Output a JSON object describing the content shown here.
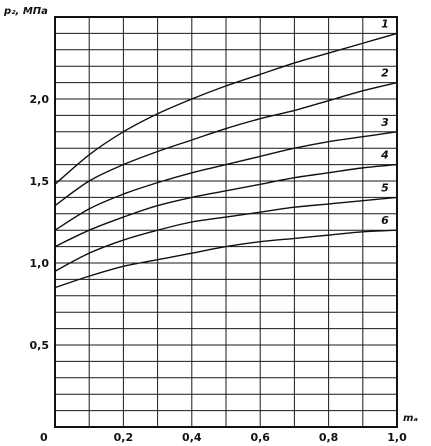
{
  "chart_data": {
    "type": "line",
    "title": "",
    "ylabel": "p₂, МПа",
    "xlabel": "mₐ",
    "xlim": [
      0,
      1.0
    ],
    "ylim": [
      0,
      2.5
    ],
    "grid": true,
    "x_ticks": [
      {
        "value": 0,
        "label": "0"
      },
      {
        "value": 0.2,
        "label": "0,2"
      },
      {
        "value": 0.4,
        "label": "0,4"
      },
      {
        "value": 0.6,
        "label": "0,6"
      },
      {
        "value": 0.8,
        "label": "0,8"
      },
      {
        "value": 1.0,
        "label": "1,0"
      }
    ],
    "y_ticks": [
      {
        "value": 0.5,
        "label": "0,5"
      },
      {
        "value": 1.0,
        "label": "1,0"
      },
      {
        "value": 1.5,
        "label": "1,5"
      },
      {
        "value": 2.0,
        "label": "2,0"
      }
    ],
    "series": [
      {
        "name": "1",
        "x": [
          0,
          0.1,
          0.2,
          0.3,
          0.4,
          0.5,
          0.6,
          0.7,
          0.8,
          0.9,
          1.0
        ],
        "y": [
          1.48,
          1.66,
          1.8,
          1.91,
          2.0,
          2.08,
          2.15,
          2.22,
          2.28,
          2.34,
          2.4
        ]
      },
      {
        "name": "2",
        "x": [
          0,
          0.1,
          0.2,
          0.3,
          0.4,
          0.5,
          0.6,
          0.7,
          0.8,
          0.9,
          1.0
        ],
        "y": [
          1.35,
          1.5,
          1.6,
          1.68,
          1.75,
          1.82,
          1.88,
          1.93,
          1.99,
          2.05,
          2.1
        ]
      },
      {
        "name": "3",
        "x": [
          0,
          0.1,
          0.2,
          0.3,
          0.4,
          0.5,
          0.6,
          0.7,
          0.8,
          0.9,
          1.0
        ],
        "y": [
          1.2,
          1.33,
          1.42,
          1.49,
          1.55,
          1.6,
          1.65,
          1.7,
          1.74,
          1.77,
          1.8
        ]
      },
      {
        "name": "4",
        "x": [
          0,
          0.1,
          0.2,
          0.3,
          0.4,
          0.5,
          0.6,
          0.7,
          0.8,
          0.9,
          1.0
        ],
        "y": [
          1.1,
          1.2,
          1.28,
          1.35,
          1.4,
          1.44,
          1.48,
          1.52,
          1.55,
          1.58,
          1.6
        ]
      },
      {
        "name": "5",
        "x": [
          0,
          0.1,
          0.2,
          0.3,
          0.4,
          0.5,
          0.6,
          0.7,
          0.8,
          0.9,
          1.0
        ],
        "y": [
          0.95,
          1.06,
          1.14,
          1.2,
          1.25,
          1.28,
          1.31,
          1.34,
          1.36,
          1.38,
          1.4
        ]
      },
      {
        "name": "6",
        "x": [
          0,
          0.1,
          0.2,
          0.3,
          0.4,
          0.5,
          0.6,
          0.7,
          0.8,
          0.9,
          1.0
        ],
        "y": [
          0.85,
          0.92,
          0.98,
          1.02,
          1.06,
          1.1,
          1.13,
          1.15,
          1.17,
          1.19,
          1.2
        ]
      }
    ]
  }
}
